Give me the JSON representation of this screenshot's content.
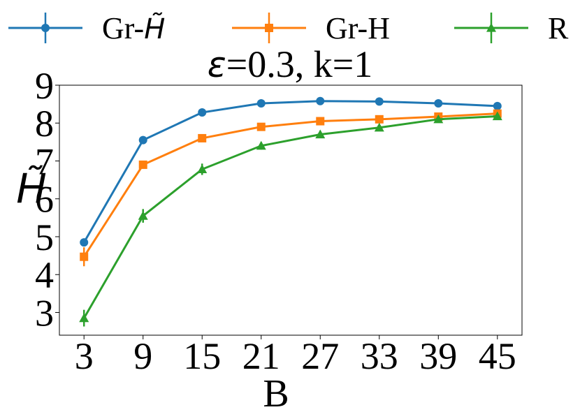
{
  "chart_data": {
    "type": "line",
    "title": "ε=0.3, k=1",
    "title_parts": {
      "symbol": "ε",
      "rest": "=0.3, k=1"
    },
    "xlabel": "B",
    "ylabel": "H̃",
    "x": [
      3,
      9,
      15,
      21,
      27,
      33,
      39,
      45
    ],
    "x_ticks": [
      "3",
      "9",
      "15",
      "21",
      "27",
      "33",
      "39",
      "45"
    ],
    "y_ticks": [
      "3",
      "4",
      "5",
      "6",
      "7",
      "8",
      "9"
    ],
    "ylim": [
      2.4,
      9.0
    ],
    "grid": false,
    "legend_position": "top",
    "series": [
      {
        "name": "Gr-H̃",
        "name_parts": {
          "prefix": "Gr-",
          "symbol": "H̃"
        },
        "color": "#1f77b4",
        "marker": "circle",
        "values": [
          4.85,
          7.55,
          8.28,
          8.52,
          8.58,
          8.57,
          8.52,
          8.45
        ],
        "errors": [
          0.08,
          0.08,
          0.06,
          0.05,
          0.05,
          0.05,
          0.05,
          0.05
        ]
      },
      {
        "name": "Gr-H",
        "color": "#ff7f0e",
        "marker": "square",
        "values": [
          4.47,
          6.9,
          7.6,
          7.9,
          8.05,
          8.1,
          8.17,
          8.25
        ],
        "errors": [
          0.25,
          0.1,
          0.08,
          0.06,
          0.06,
          0.06,
          0.06,
          0.06
        ]
      },
      {
        "name": "R",
        "color": "#2ca02c",
        "marker": "triangle",
        "values": [
          2.85,
          5.55,
          6.78,
          7.4,
          7.7,
          7.88,
          8.1,
          8.18
        ],
        "errors": [
          0.22,
          0.18,
          0.15,
          0.1,
          0.1,
          0.08,
          0.08,
          0.08
        ]
      }
    ]
  }
}
